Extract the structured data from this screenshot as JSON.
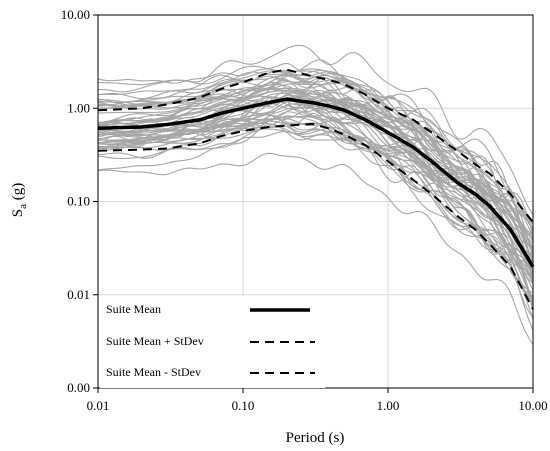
{
  "chart_data": {
    "type": "line",
    "xscale": "log",
    "yscale": "log",
    "xlabel": "Period (s)",
    "ylabel_main": "S",
    "ylabel_sub": "a",
    "ylabel_tail": " (g)",
    "xlim": [
      0.01,
      10
    ],
    "ylim": [
      0.001,
      10
    ],
    "grid": true,
    "legend_position": "bottom-left",
    "x_ticks": [
      0.01,
      0.1,
      1,
      10
    ],
    "x_tick_labels": [
      "0.01",
      "0.10",
      "1.00",
      "10.00"
    ],
    "y_ticks": [
      0.001,
      0.01,
      0.1,
      1,
      10
    ],
    "y_tick_labels": [
      "0.00",
      "0.01",
      "0.10",
      "1.00",
      "10.00"
    ],
    "series": [
      {
        "name": "Suite Mean",
        "style": "solid-thick",
        "color": "#000000",
        "x": [
          0.01,
          0.02,
          0.03,
          0.05,
          0.07,
          0.1,
          0.15,
          0.2,
          0.3,
          0.4,
          0.5,
          0.7,
          1.0,
          1.5,
          2.0,
          3.0,
          4.0,
          5.0,
          7.0,
          10.0
        ],
        "y": [
          0.61,
          0.63,
          0.67,
          0.75,
          0.88,
          1.0,
          1.15,
          1.25,
          1.15,
          1.05,
          0.95,
          0.75,
          0.55,
          0.38,
          0.27,
          0.16,
          0.12,
          0.09,
          0.05,
          0.02
        ]
      },
      {
        "name": "Suite Mean + StDev",
        "style": "dashed",
        "color": "#000000",
        "x": [
          0.01,
          0.02,
          0.03,
          0.05,
          0.07,
          0.1,
          0.15,
          0.2,
          0.3,
          0.4,
          0.5,
          0.7,
          1.0,
          1.5,
          2.0,
          3.0,
          4.0,
          5.0,
          7.0,
          10.0
        ],
        "y": [
          0.95,
          1.0,
          1.1,
          1.3,
          1.6,
          1.9,
          2.4,
          2.6,
          2.2,
          2.0,
          1.8,
          1.4,
          1.0,
          0.75,
          0.55,
          0.35,
          0.25,
          0.2,
          0.12,
          0.06
        ]
      },
      {
        "name": "Suite Mean - StDev",
        "style": "dashed",
        "color": "#000000",
        "x": [
          0.01,
          0.02,
          0.03,
          0.05,
          0.07,
          0.1,
          0.15,
          0.2,
          0.3,
          0.4,
          0.5,
          0.7,
          1.0,
          1.5,
          2.0,
          3.0,
          4.0,
          5.0,
          7.0,
          10.0
        ],
        "y": [
          0.35,
          0.36,
          0.37,
          0.42,
          0.5,
          0.57,
          0.63,
          0.65,
          0.68,
          0.6,
          0.52,
          0.4,
          0.27,
          0.17,
          0.12,
          0.07,
          0.05,
          0.035,
          0.02,
          0.007
        ]
      }
    ]
  },
  "colors": {
    "individual_records": "#a6a6a6",
    "grid": "#d9d9d9",
    "axis": "#000000"
  }
}
